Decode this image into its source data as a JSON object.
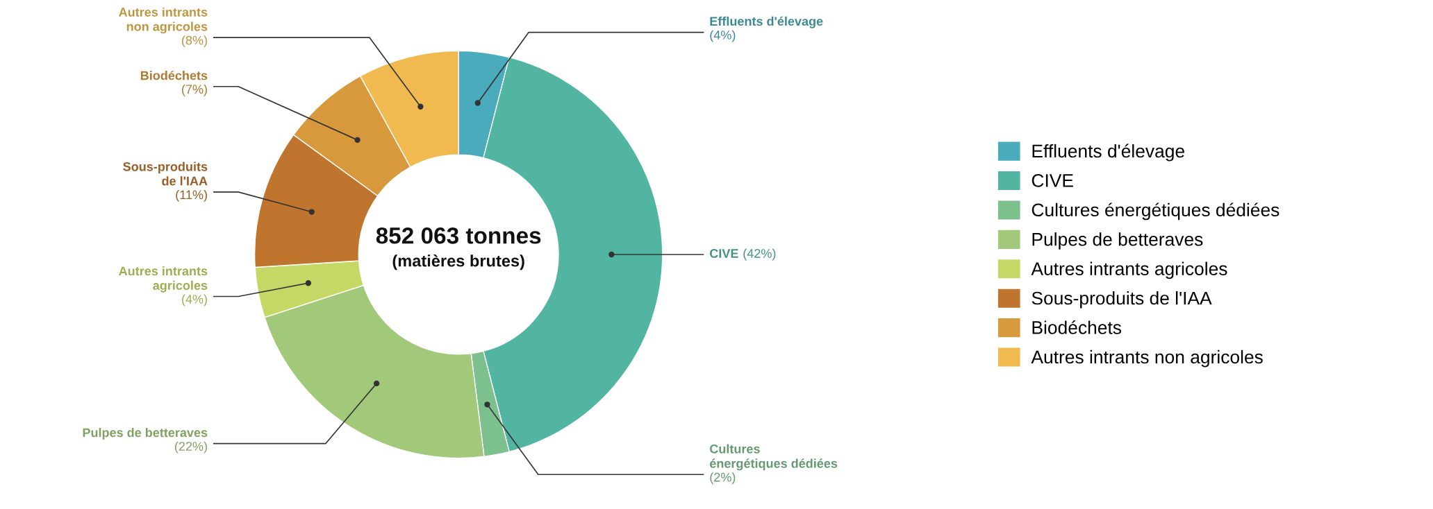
{
  "chart_data": {
    "type": "donut",
    "categories": [
      "Effluents d'élevage",
      "CIVE",
      "Cultures énergétiques dédiées",
      "Pulpes de betteraves",
      "Autres intrants agricoles",
      "Sous-produits de l'IAA",
      "Biodéchets",
      "Autres intrants non agricoles"
    ],
    "values": [
      4,
      42,
      2,
      22,
      4,
      11,
      7,
      8
    ],
    "value_labels": [
      "(4%)",
      "(42%)",
      "(2%)",
      "(22%)",
      "(4%)",
      "(11%)",
      "(7%)",
      "(8%)"
    ],
    "colors": [
      "#4aabbd",
      "#52b5a2",
      "#7cc08e",
      "#a2c879",
      "#c5d866",
      "#c0752f",
      "#d8983c",
      "#f0ba50"
    ],
    "annotations": [
      "852 063 tonnes",
      "(matières brutes)"
    ],
    "legend": "right"
  }
}
